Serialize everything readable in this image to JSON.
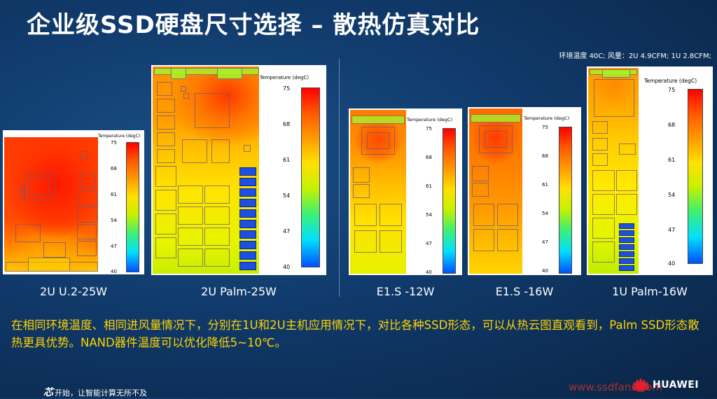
{
  "slide": {
    "title": "企业级SSD硬盘尺寸选择 – 散热仿真对比",
    "conditions": "环境温度 40C; 风量：2U 4.9CFM; 1U 2.8CFM;",
    "description": "在相同环境温度、相同进风量情况下，分别在1U和2U主机应用情况下，对比各种SSD形态，可以从热云图直观看到，Palm SSD形态散热更具优势。NAND器件温度可以优化降低5~10℃。",
    "footer_prefix": "芯",
    "footer_slogan": "开始，让智能计算无所不及",
    "watermark": "www.ssdfans.com",
    "brand": "HUAWEI"
  },
  "colorbar": {
    "title": "Temperature (degC)",
    "ticks": [
      "75",
      "68",
      "61",
      "54",
      "47",
      "40"
    ]
  },
  "panels": [
    {
      "label": "2U U.2-25W"
    },
    {
      "label": "2U Palm-25W"
    },
    {
      "label": "E1.S -12W"
    },
    {
      "label": "E1.S -16W"
    },
    {
      "label": "1U Palm-16W"
    }
  ],
  "colors": {
    "hot": "#ff2a00",
    "warm": "#ff8a00",
    "mid": "#ffd200",
    "cool": "#c8ef00",
    "nand_blue": "#1e4fe0",
    "highlight": "#ffd400"
  }
}
